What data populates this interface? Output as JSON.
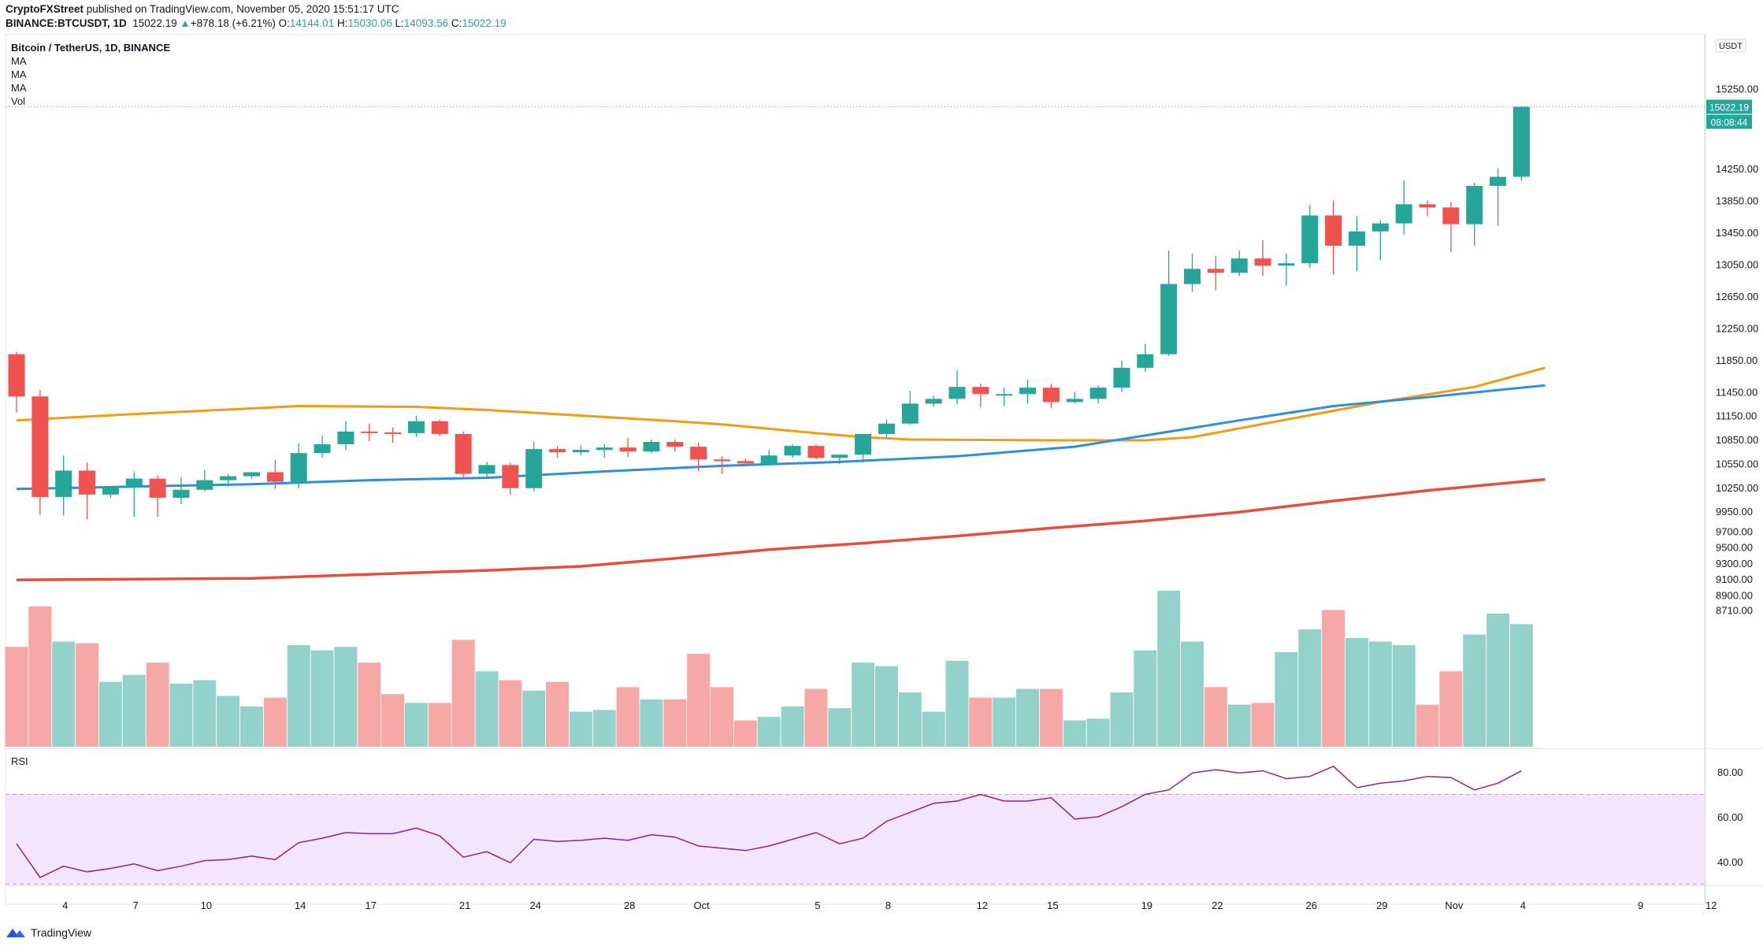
{
  "header": {
    "publisher": "CryptoFXStreet",
    "published_text": "published on TradingView.com, November 05, 2020 15:51:17 UTC",
    "symbol": "BINANCE:BTCUSDT, 1D",
    "price": "15022.19",
    "change_arrow": "▲",
    "change": "+878.18 (+6.21%)",
    "o_label": "O:",
    "o_value": "14144.01",
    "h_label": "H:",
    "h_value": "15030.06",
    "l_label": "L:",
    "l_value": "14093.56",
    "c_label": "C:",
    "c_value": "15022.19"
  },
  "legend": {
    "title": "Bitcoin / TetherUS, 1D, BINANCE",
    "items": [
      "MA",
      "MA",
      "MA",
      "Vol"
    ]
  },
  "rsi_label": "RSI",
  "price_axis_unit": "USDT",
  "last_price_label": "15022.19",
  "countdown_label": "08:08:44",
  "footer": {
    "brand": "TradingView",
    "logo_icon": "tradingview-logo-icon"
  },
  "colors": {
    "up": "#26a69a",
    "down": "#ef5350",
    "vol_up": "#93d2cb",
    "vol_down": "#f6a8a6",
    "ma_orange": "#f39c12",
    "ma_blue": "#2e8fdd",
    "ma_red": "#e74c3c",
    "rsi_line": "#8e248e",
    "rsi_band": "#f3e5fb"
  },
  "chart_data": {
    "type": "candlestick",
    "title": "Bitcoin / TetherUS, 1D, BINANCE",
    "y_unit": "USDT",
    "price_ticks": [
      15250,
      14250,
      13850,
      13450,
      13050,
      12650,
      12250,
      11850,
      11450,
      11150,
      10850,
      10550,
      10250,
      9950,
      9700,
      9500,
      9300,
      9100,
      8900,
      8710
    ],
    "x_ticks": [
      {
        "label": "4",
        "index": 2
      },
      {
        "label": "7",
        "index": 5
      },
      {
        "label": "10",
        "index": 8
      },
      {
        "label": "14",
        "index": 12
      },
      {
        "label": "17",
        "index": 15
      },
      {
        "label": "21",
        "index": 19
      },
      {
        "label": "24",
        "index": 22
      },
      {
        "label": "28",
        "index": 26
      },
      {
        "label": "Oct",
        "index": 29
      },
      {
        "label": "5",
        "index": 34
      },
      {
        "label": "8",
        "index": 37
      },
      {
        "label": "12",
        "index": 41
      },
      {
        "label": "15",
        "index": 44
      },
      {
        "label": "19",
        "index": 48
      },
      {
        "label": "22",
        "index": 51
      },
      {
        "label": "26",
        "index": 55
      },
      {
        "label": "29",
        "index": 58
      },
      {
        "label": "Nov",
        "index": 61
      },
      {
        "label": "4",
        "index": 64
      },
      {
        "label": "9",
        "index": 69
      },
      {
        "label": "12",
        "index": 72
      }
    ],
    "candles": [
      {
        "o": 11920,
        "h": 11950,
        "l": 11190,
        "c": 11390
      },
      {
        "o": 11390,
        "h": 11470,
        "l": 9910,
        "c": 10130
      },
      {
        "o": 10130,
        "h": 10650,
        "l": 9900,
        "c": 10460
      },
      {
        "o": 10460,
        "h": 10560,
        "l": 9850,
        "c": 10160
      },
      {
        "o": 10160,
        "h": 10250,
        "l": 10120,
        "c": 10260
      },
      {
        "o": 10260,
        "h": 10450,
        "l": 9880,
        "c": 10360
      },
      {
        "o": 10360,
        "h": 10400,
        "l": 9880,
        "c": 10120
      },
      {
        "o": 10120,
        "h": 10380,
        "l": 10040,
        "c": 10220
      },
      {
        "o": 10220,
        "h": 10470,
        "l": 10200,
        "c": 10340
      },
      {
        "o": 10340,
        "h": 10420,
        "l": 10260,
        "c": 10390
      },
      {
        "o": 10390,
        "h": 10440,
        "l": 10360,
        "c": 10440
      },
      {
        "o": 10440,
        "h": 10600,
        "l": 10230,
        "c": 10320
      },
      {
        "o": 10320,
        "h": 10800,
        "l": 10240,
        "c": 10680
      },
      {
        "o": 10680,
        "h": 10900,
        "l": 10620,
        "c": 10790
      },
      {
        "o": 10790,
        "h": 11080,
        "l": 10720,
        "c": 10950
      },
      {
        "o": 10950,
        "h": 11050,
        "l": 10830,
        "c": 10940
      },
      {
        "o": 10940,
        "h": 11000,
        "l": 10810,
        "c": 10930
      },
      {
        "o": 10930,
        "h": 11150,
        "l": 10880,
        "c": 11080
      },
      {
        "o": 11080,
        "h": 11100,
        "l": 10890,
        "c": 10920
      },
      {
        "o": 10920,
        "h": 10950,
        "l": 10350,
        "c": 10420
      },
      {
        "o": 10420,
        "h": 10570,
        "l": 10370,
        "c": 10530
      },
      {
        "o": 10530,
        "h": 10560,
        "l": 10160,
        "c": 10240
      },
      {
        "o": 10240,
        "h": 10820,
        "l": 10200,
        "c": 10730
      },
      {
        "o": 10730,
        "h": 10770,
        "l": 10620,
        "c": 10690
      },
      {
        "o": 10690,
        "h": 10780,
        "l": 10650,
        "c": 10720
      },
      {
        "o": 10720,
        "h": 10790,
        "l": 10620,
        "c": 10750
      },
      {
        "o": 10750,
        "h": 10870,
        "l": 10630,
        "c": 10700
      },
      {
        "o": 10700,
        "h": 10850,
        "l": 10680,
        "c": 10820
      },
      {
        "o": 10820,
        "h": 10850,
        "l": 10700,
        "c": 10760
      },
      {
        "o": 10760,
        "h": 10810,
        "l": 10450,
        "c": 10600
      },
      {
        "o": 10600,
        "h": 10640,
        "l": 10420,
        "c": 10580
      },
      {
        "o": 10580,
        "h": 10610,
        "l": 10550,
        "c": 10550
      },
      {
        "o": 10550,
        "h": 10720,
        "l": 10530,
        "c": 10650
      },
      {
        "o": 10650,
        "h": 10790,
        "l": 10620,
        "c": 10770
      },
      {
        "o": 10770,
        "h": 10790,
        "l": 10600,
        "c": 10620
      },
      {
        "o": 10620,
        "h": 10660,
        "l": 10540,
        "c": 10660
      },
      {
        "o": 10660,
        "h": 10920,
        "l": 10560,
        "c": 10920
      },
      {
        "o": 10920,
        "h": 11100,
        "l": 10880,
        "c": 11050
      },
      {
        "o": 11050,
        "h": 11460,
        "l": 11030,
        "c": 11300
      },
      {
        "o": 11300,
        "h": 11400,
        "l": 11260,
        "c": 11360
      },
      {
        "o": 11360,
        "h": 11720,
        "l": 11290,
        "c": 11510
      },
      {
        "o": 11510,
        "h": 11550,
        "l": 11250,
        "c": 11420
      },
      {
        "o": 11420,
        "h": 11500,
        "l": 11270,
        "c": 11420
      },
      {
        "o": 11420,
        "h": 11600,
        "l": 11300,
        "c": 11500
      },
      {
        "o": 11500,
        "h": 11550,
        "l": 11250,
        "c": 11320
      },
      {
        "o": 11320,
        "h": 11450,
        "l": 11300,
        "c": 11360
      },
      {
        "o": 11360,
        "h": 11530,
        "l": 11300,
        "c": 11500
      },
      {
        "o": 11500,
        "h": 11840,
        "l": 11450,
        "c": 11750
      },
      {
        "o": 11750,
        "h": 12050,
        "l": 11700,
        "c": 11920
      },
      {
        "o": 11920,
        "h": 13220,
        "l": 11900,
        "c": 12800
      },
      {
        "o": 12800,
        "h": 13180,
        "l": 12700,
        "c": 12990
      },
      {
        "o": 12990,
        "h": 13150,
        "l": 12720,
        "c": 12940
      },
      {
        "o": 12940,
        "h": 13220,
        "l": 12900,
        "c": 13120
      },
      {
        "o": 13120,
        "h": 13350,
        "l": 12900,
        "c": 13030
      },
      {
        "o": 13030,
        "h": 13180,
        "l": 12780,
        "c": 13060
      },
      {
        "o": 13060,
        "h": 13790,
        "l": 13000,
        "c": 13660
      },
      {
        "o": 13660,
        "h": 13850,
        "l": 12920,
        "c": 13280
      },
      {
        "o": 13280,
        "h": 13650,
        "l": 12960,
        "c": 13460
      },
      {
        "o": 13460,
        "h": 13600,
        "l": 13100,
        "c": 13560
      },
      {
        "o": 13560,
        "h": 14100,
        "l": 13420,
        "c": 13800
      },
      {
        "o": 13800,
        "h": 13850,
        "l": 13650,
        "c": 13760
      },
      {
        "o": 13760,
        "h": 13830,
        "l": 13200,
        "c": 13550
      },
      {
        "o": 13550,
        "h": 14070,
        "l": 13280,
        "c": 14030
      },
      {
        "o": 14030,
        "h": 14250,
        "l": 13530,
        "c": 14144.01
      },
      {
        "o": 14144.01,
        "h": 15030.06,
        "l": 14093.56,
        "c": 15022.19
      }
    ],
    "ma_orange": [
      [
        0,
        11090
      ],
      [
        5,
        11170
      ],
      [
        10,
        11240
      ],
      [
        12,
        11270
      ],
      [
        17,
        11260
      ],
      [
        20,
        11220
      ],
      [
        24,
        11150
      ],
      [
        28,
        11080
      ],
      [
        30,
        11040
      ],
      [
        34,
        10930
      ],
      [
        36,
        10880
      ],
      [
        38,
        10850
      ],
      [
        44,
        10840
      ],
      [
        48,
        10840
      ],
      [
        50,
        10880
      ],
      [
        54,
        11100
      ],
      [
        58,
        11320
      ],
      [
        62,
        11510
      ],
      [
        65,
        11750
      ]
    ],
    "ma_blue": [
      [
        0,
        10230
      ],
      [
        5,
        10260
      ],
      [
        10,
        10290
      ],
      [
        15,
        10340
      ],
      [
        20,
        10370
      ],
      [
        25,
        10450
      ],
      [
        30,
        10520
      ],
      [
        35,
        10570
      ],
      [
        40,
        10640
      ],
      [
        45,
        10760
      ],
      [
        48,
        10900
      ],
      [
        52,
        11090
      ],
      [
        56,
        11270
      ],
      [
        60,
        11380
      ],
      [
        65,
        11530
      ]
    ],
    "ma_red": [
      [
        0,
        9090
      ],
      [
        5,
        9100
      ],
      [
        10,
        9110
      ],
      [
        15,
        9160
      ],
      [
        20,
        9210
      ],
      [
        24,
        9260
      ],
      [
        28,
        9360
      ],
      [
        32,
        9470
      ],
      [
        36,
        9550
      ],
      [
        40,
        9640
      ],
      [
        44,
        9740
      ],
      [
        48,
        9830
      ],
      [
        52,
        9940
      ],
      [
        56,
        10080
      ],
      [
        60,
        10210
      ],
      [
        65,
        10350
      ]
    ],
    "volume_relative": [
      0.57,
      0.8,
      0.6,
      0.59,
      0.37,
      0.41,
      0.48,
      0.36,
      0.38,
      0.29,
      0.23,
      0.28,
      0.58,
      0.55,
      0.57,
      0.48,
      0.3,
      0.25,
      0.25,
      0.61,
      0.43,
      0.38,
      0.32,
      0.37,
      0.2,
      0.21,
      0.34,
      0.27,
      0.27,
      0.53,
      0.34,
      0.15,
      0.17,
      0.23,
      0.33,
      0.22,
      0.48,
      0.46,
      0.31,
      0.2,
      0.49,
      0.28,
      0.28,
      0.33,
      0.33,
      0.15,
      0.16,
      0.31,
      0.55,
      0.89,
      0.6,
      0.34,
      0.24,
      0.25,
      0.54,
      0.67,
      0.78,
      0.62,
      0.6,
      0.58,
      0.24,
      0.43,
      0.64,
      0.76,
      0.7
    ],
    "rsi": {
      "label": "RSI",
      "ticks": [
        80,
        60,
        40
      ],
      "band": [
        30,
        70
      ],
      "values": [
        48,
        33,
        38,
        35.5,
        37,
        39,
        36,
        38,
        40.5,
        41,
        42.5,
        41,
        48.5,
        50.5,
        53,
        52.5,
        52.5,
        55,
        51.5,
        42,
        44.5,
        39.5,
        50,
        49,
        49.5,
        50.5,
        49.5,
        52,
        51,
        47,
        46,
        45,
        47,
        50,
        53,
        48,
        50.5,
        58,
        62,
        66,
        67,
        70,
        67,
        67,
        68.5,
        59,
        60,
        64.5,
        70,
        72,
        79.5,
        81,
        79.5,
        80.5,
        77,
        78,
        82.5,
        73,
        75,
        76,
        78,
        77.5,
        72,
        75,
        80.5
      ]
    }
  }
}
